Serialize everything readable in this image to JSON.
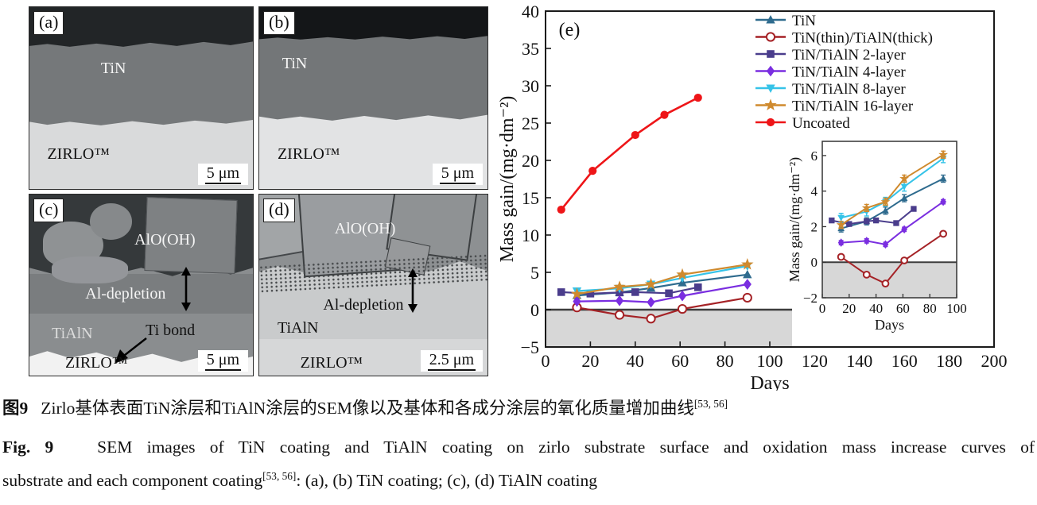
{
  "panels": {
    "a": {
      "tag": "(a)",
      "coating": "TiN",
      "substrate": "ZIRLO™",
      "scale": "5 μm"
    },
    "b": {
      "tag": "(b)",
      "coating": "TiN",
      "substrate": "ZIRLO™",
      "scale": "5 μm"
    },
    "c": {
      "tag": "(c)",
      "oxide": "AlO(OH)",
      "depletion": "Al-depletion",
      "coating": "TiAlN",
      "bond": "Ti bond",
      "substrate": "ZIRLO™",
      "scale": "5 μm"
    },
    "d": {
      "tag": "(d)",
      "oxide": "AlO(OH)",
      "depletion": "Al-depletion",
      "coating": "TiAlN",
      "substrate": "ZIRLO™",
      "scale": "2.5 μm"
    }
  },
  "chart_data": {
    "type": "line",
    "panel_label": "(e)",
    "xlabel": "Days",
    "ylabel": "Mass gain/(mg·dm⁻²)",
    "xlim": [
      0,
      200
    ],
    "xtick_step": 20,
    "ylim": [
      -5,
      40
    ],
    "ytick_step": 5,
    "legend_position": "top-right",
    "grid": false,
    "shaded_below_zero": {
      "x_end": 110,
      "color": "#d7d7d7"
    },
    "series": [
      {
        "name": "TiN",
        "color": "#2e6b8e",
        "marker": "triangle-up",
        "err": 0.2,
        "x": [
          14,
          33,
          47,
          61,
          90
        ],
        "y": [
          1.9,
          2.3,
          2.9,
          3.6,
          4.7
        ]
      },
      {
        "name": "TiN(thin)/TiAlN(thick)",
        "color": "#a52226",
        "marker": "circle-open",
        "err": 0,
        "x": [
          14,
          33,
          47,
          61,
          90
        ],
        "y": [
          0.3,
          -0.7,
          -1.2,
          0.1,
          1.6
        ]
      },
      {
        "name": "TiN/TiAlN 2-layer",
        "color": "#4a3d8c",
        "marker": "square",
        "err": 0,
        "x": [
          7,
          20,
          33,
          40,
          55,
          68
        ],
        "y": [
          2.35,
          2.15,
          2.3,
          2.35,
          2.2,
          3.0
        ]
      },
      {
        "name": "TiN/TiAlN 4-layer",
        "color": "#7a2ee0",
        "marker": "diamond",
        "err": 0.12,
        "x": [
          14,
          33,
          47,
          61,
          90
        ],
        "y": [
          1.1,
          1.2,
          1.0,
          1.85,
          3.4
        ]
      },
      {
        "name": "TiN/TiAlN 8-layer",
        "color": "#35c3e8",
        "marker": "triangle-down",
        "err": 0.25,
        "x": [
          14,
          33,
          47,
          61,
          90
        ],
        "y": [
          2.5,
          2.85,
          3.4,
          4.25,
          5.85
        ]
      },
      {
        "name": "TiN/TiAlN 16-layer",
        "color": "#cf8a2e",
        "marker": "star",
        "err": 0.2,
        "x": [
          14,
          33,
          47,
          61,
          90
        ],
        "y": [
          2.1,
          3.05,
          3.4,
          4.7,
          6.05
        ]
      },
      {
        "name": "Uncoated",
        "color": "#ee1518",
        "marker": "circle",
        "err": 0,
        "x": [
          7,
          21,
          40,
          53,
          68
        ],
        "y": [
          13.4,
          18.6,
          23.4,
          26.1,
          28.4
        ]
      }
    ],
    "inset": {
      "xlabel": "Days",
      "ylabel": "Mass gain/(mg·dm⁻²)",
      "xlim": [
        0,
        100
      ],
      "xtick_step": 20,
      "ylim": [
        -2,
        6.8
      ],
      "yticks": [
        -2,
        0,
        2,
        4,
        6
      ],
      "series_subset": [
        "TiN",
        "TiN(thin)/TiAlN(thick)",
        "TiN/TiAlN 2-layer",
        "TiN/TiAlN 4-layer",
        "TiN/TiAlN 8-layer",
        "TiN/TiAlN 16-layer"
      ]
    }
  },
  "caption": {
    "cn": {
      "fig": "图9",
      "text": "Zirlo基体表面TiN涂层和TiAlN涂层的SEM像以及基体和各成分涂层的氧化质量增加曲线",
      "ref": "[53, 56]"
    },
    "en": {
      "fig": "Fig. 9",
      "line1": "SEM images of TiN coating and TiAlN coating on zirlo substrate surface and oxidation mass increase curves of",
      "line2_pre": "substrate and each component coating",
      "ref": "[53, 56]",
      "line2_post": ": (a), (b) TiN coating; (c), (d) TiAlN coating"
    }
  }
}
